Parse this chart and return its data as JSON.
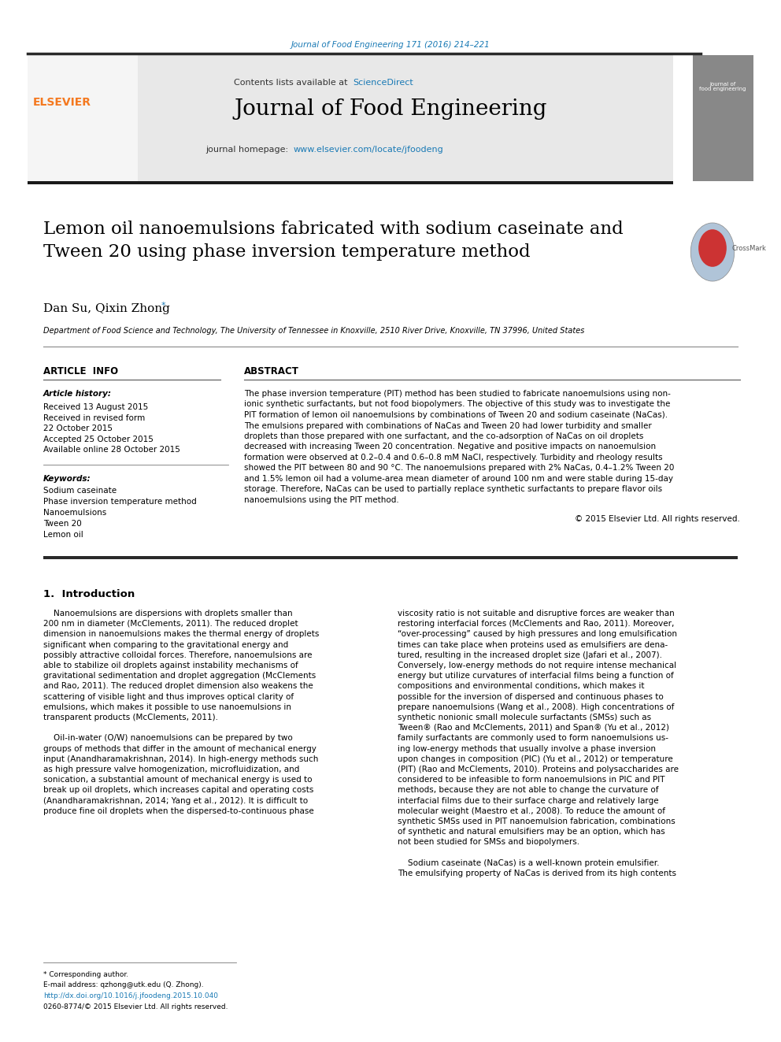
{
  "page_width": 9.92,
  "page_height": 13.23,
  "bg_color": "#ffffff",
  "top_link_text": "Journal of Food Engineering 171 (2016) 214–221",
  "top_link_color": "#1a7ab5",
  "header_bg": "#e8e8e8",
  "header_title": "Journal of Food Engineering",
  "header_contents": "Contents lists available at ",
  "header_sciencedirect": "ScienceDirect",
  "header_link_color": "#1a7ab5",
  "header_homepage": "journal homepage: ",
  "header_url": "www.elsevier.com/locate/jfoodeng",
  "black_bar_color": "#1a1a1a",
  "article_title": "Lemon oil nanoemulsions fabricated with sodium caseinate and\nTween 20 using phase inversion temperature method",
  "authors": "Dan Su, Qixin Zhong",
  "affiliation": "Department of Food Science and Technology, The University of Tennessee in Knoxville, 2510 River Drive, Knoxville, TN 37996, United States",
  "section_article_info": "ARTICLE  INFO",
  "section_abstract": "ABSTRACT",
  "article_history_label": "Article history:",
  "received": "Received 13 August 2015",
  "received_revised": "Received in revised form\n22 October 2015",
  "accepted": "Accepted 25 October 2015",
  "available": "Available online 28 October 2015",
  "keywords_label": "Keywords:",
  "keywords": [
    "Sodium caseinate",
    "Phase inversion temperature method",
    "Nanoemulsions",
    "Tween 20",
    "Lemon oil"
  ],
  "abstract_text": "The phase inversion temperature (PIT) method has been studied to fabricate nanoemulsions using non-ionic synthetic surfactants, but not food biopolymers. The objective of this study was to investigate the PIT formation of lemon oil nanoemulsions by combinations of Tween 20 and sodium caseinate (NaCas). The emulsions prepared with combinations of NaCas and Tween 20 had lower turbidity and smaller droplets than those prepared with one surfactant, and the co-adsorption of NaCas on oil droplets decreased with increasing Tween 20 concentration. Negative and positive impacts on nanoemulsion formation were observed at 0.2–0.4 and 0.6–0.8 mM NaCl, respectively. Turbidity and rheology results showed the PIT between 80 and 90 °C. The nanoemulsions prepared with 2% NaCas, 0.4–1.2% Tween 20 and 1.5% lemon oil had a volume-area mean diameter of around 100 nm and were stable during 15-day storage. Therefore, NaCas can be used to partially replace synthetic surfactants to prepare flavor oils nanoemulsions using the PIT method.",
  "copyright": "© 2015 Elsevier Ltd. All rights reserved.",
  "intro_heading": "1.  Introduction",
  "intro_col1": "Nanoemulsions are dispersions with droplets smaller than 200 nm in diameter (McClements, 2011). The reduced droplet dimension in nanoemulsions makes the thermal energy of droplets significant when comparing to the gravitational energy and possibly attractive colloidal forces. Therefore, nanoemulsions are able to stabilize oil droplets against instability mechanisms of gravitational sedimentation and droplet aggregation (McClements and Rao, 2011). The reduced droplet dimension also weakens the scattering of visible light and thus improves optical clarity of emulsions, which makes it possible to use nanoemulsions in transparent products (McClements, 2011).\n\n    Oil-in-water (O/W) nanoemulsions can be prepared by two groups of methods that differ in the amount of mechanical energy input (Anandharamakrishnan, 2014). In high-energy methods such as high pressure valve homogenization, microfluidization, and sonication, a substantial amount of mechanical energy is used to break up oil droplets, which increases capital and operating costs (Anandharamakrishnan, 2014; Yang et al., 2012). It is difficult to produce fine oil droplets when the dispersed-to-continuous phase",
  "intro_col2": "viscosity ratio is not suitable and disruptive forces are weaker than restoring interfacial forces (McClements and Rao, 2011). Moreover, “over-processing” caused by high pressures and long emulsification times can take place when proteins used as emulsifiers are denatured, resulting in the increased droplet size (Jafari et al., 2007). Conversely, low-energy methods do not require intense mechanical energy but utilize curvatures of interfacial films being a function of compositions and environmental conditions, which makes it possible for the inversion of dispersed and continuous phases to prepare nanoemulsions (Wang et al., 2008). High concentrations of synthetic nonionic small molecule surfactants (SMSs) such as Tween® (Rao and McClements, 2011) and Span® (Yu et al., 2012) family surfactants are commonly used to form nanoemulsions using low-energy methods that usually involve a phase inversion upon changes in composition (PIC) (Yu et al., 2012) or temperature (PIT) (Rao and McClements, 2010). Proteins and polysaccharides are considered to be infeasible to form nanoemulsions in PIC and PIT methods, because they are not able to change the curvature of interfacial films due to their surface charge and relatively large molecular weight (Maestro et al., 2008). To reduce the amount of synthetic SMSs used in PIT nanoemulsion fabrication, combinations of synthetic and natural emulsifiers may be an option, which has not been studied for SMSs and biopolymers.\n\n    Sodium caseinate (NaCas) is a well-known protein emulsifier. The emulsifying property of NaCas is derived from its high contents",
  "footer_text1": "* Corresponding author.",
  "footer_text2": "E-mail address: qzhong@utk.edu (Q. Zhong).",
  "footer_doi": "http://dx.doi.org/10.1016/j.jfoodeng.2015.10.040",
  "footer_issn": "0260-8774/© 2015 Elsevier Ltd. All rights reserved.",
  "link_color": "#1a7ab5",
  "text_color": "#000000",
  "divider_color": "#000000",
  "elsevier_orange": "#f47920",
  "elsevier_text_color": "#f47920"
}
